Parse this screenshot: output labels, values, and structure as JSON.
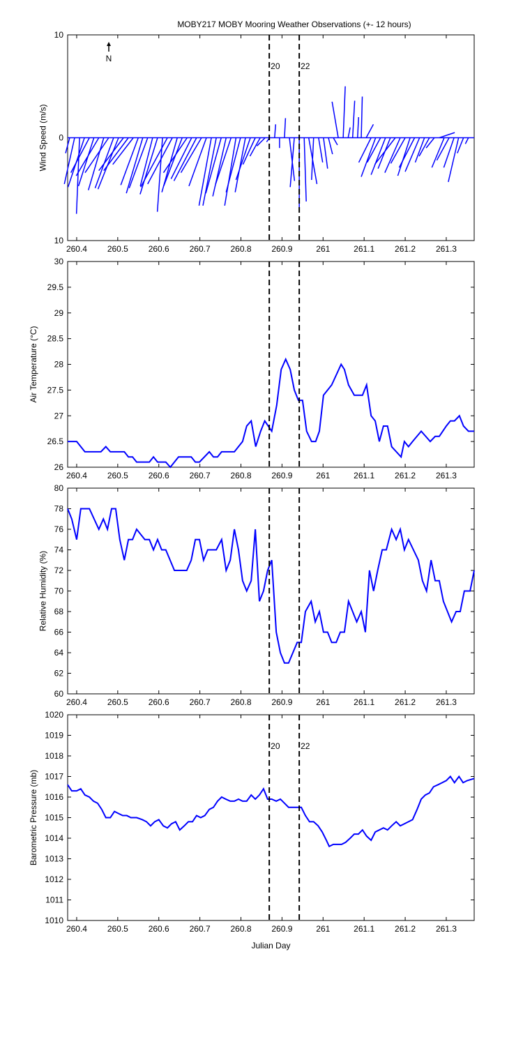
{
  "chart_data": [
    {
      "type": "stick",
      "title": "MOBY217 MOBY Mooring Weather Observations (+- 12 hours)",
      "y_label": "Wind Speed (m/s)",
      "north_label": "N",
      "xlim": [
        260.378,
        261.368
      ],
      "xticks": [
        260.4,
        260.5,
        260.6,
        260.7,
        260.8,
        260.9,
        261,
        261.1,
        261.2,
        261.3
      ],
      "ylim": [
        -10,
        10
      ],
      "yticks": [
        {
          "value": -10,
          "label": "10"
        },
        0,
        10
      ],
      "vlines": [
        260.869,
        260.942
      ],
      "vline_labels": [
        "20",
        "22"
      ],
      "color": "#0000ff",
      "x": [
        260.383,
        260.395,
        260.407,
        260.419,
        260.431,
        260.442,
        260.454,
        260.466,
        260.478,
        260.49,
        260.502,
        260.514,
        260.526,
        260.538,
        260.55,
        260.561,
        260.573,
        260.585,
        260.597,
        260.609,
        260.621,
        260.633,
        260.645,
        260.657,
        260.669,
        260.68,
        260.692,
        260.704,
        260.716,
        260.728,
        260.74,
        260.752,
        260.764,
        260.776,
        260.788,
        260.799,
        260.811,
        260.823,
        260.835,
        260.847,
        260.859,
        260.87,
        260.882,
        260.894,
        260.906,
        260.918,
        260.93,
        260.942,
        260.954,
        260.965,
        260.977,
        260.989,
        261.001,
        261.013,
        261.025,
        261.037,
        261.049,
        261.061,
        261.072,
        261.084,
        261.093,
        261.105,
        261.117,
        261.128,
        261.14,
        261.152,
        261.164,
        261.176,
        261.188,
        261.2,
        261.212,
        261.223,
        261.235,
        261.247,
        261.259,
        261.271,
        261.283,
        261.295,
        261.307,
        261.319,
        261.33,
        261.342,
        261.354
      ],
      "u": [
        -0.4,
        -1.0,
        -0.3,
        -1.6,
        -1.8,
        -1.5,
        -2.2,
        -1.5,
        -2.3,
        -1.8,
        -2.0,
        -2.4,
        -2.4,
        -2.0,
        -1.7,
        -1.6,
        -1.8,
        -1.2,
        -1.7,
        -0.5,
        -2.6,
        -2.4,
        -1.5,
        -1.8,
        -2.3,
        -2.0,
        -2.2,
        -2.0,
        -1.7,
        -1.2,
        -1.3,
        -1.5,
        -1.3,
        -1.5,
        -1.1,
        -1.4,
        -1.0,
        -1.4,
        -1.2,
        -1.0,
        -0.8,
        -0.3,
        0.1,
        0.0,
        0.1,
        0.5,
        -0.4,
        0.0,
        0.2,
        0.8,
        -0.2,
        0.4,
        0.4,
        0.4,
        0.4,
        -0.6,
        0.2,
        0.2,
        0.2,
        0.1,
        0.1,
        0.7,
        -1.2,
        -1.4,
        -1.3,
        -1.4,
        -1.2,
        -2.0,
        -1.5,
        -1.4,
        -1.2,
        -1.5,
        -1.4,
        -0.9,
        -1.0,
        -0.8,
        1.5,
        -1.2,
        -1.2,
        -1.0,
        -1.0,
        -0.6,
        -0.3
      ],
      "v": [
        -1.5,
        -4.5,
        -7.4,
        -4.8,
        -3.4,
        -4.7,
        -3.7,
        -5.1,
        -3.4,
        -4.9,
        -5.0,
        -3.2,
        -3.2,
        -2.6,
        -4.6,
        -5.4,
        -4.9,
        -4.7,
        -5.5,
        -7.2,
        -4.8,
        -4.5,
        -5.3,
        -4.7,
        -3.4,
        -4.0,
        -4.2,
        -3.4,
        -4.7,
        -6.6,
        -6.6,
        -5.4,
        -5.7,
        -4.5,
        -6.6,
        -5.3,
        -5.3,
        -4.1,
        -2.6,
        -1.8,
        -0.8,
        -0.4,
        1.3,
        -1.0,
        1.9,
        -4.2,
        -4.8,
        -6.8,
        -6.2,
        -4.5,
        -4.1,
        -2.4,
        -3.0,
        -1.6,
        -0.7,
        3.5,
        5.0,
        1.0,
        3.6,
        2.0,
        4.0,
        1.3,
        -2.4,
        -3.8,
        -2.4,
        -3.6,
        -3.0,
        -2.6,
        -3.4,
        -2.5,
        -3.7,
        -2.9,
        -3.3,
        -2.4,
        -1.8,
        -1.0,
        0.5,
        -2.9,
        -2.2,
        -2.9,
        -4.3,
        -1.5,
        -0.6
      ]
    },
    {
      "type": "line",
      "y_label": "Air Temperature (°C)",
      "xlim": [
        260.378,
        261.368
      ],
      "xticks": [
        260.4,
        260.5,
        260.6,
        260.7,
        260.8,
        260.9,
        261,
        261.1,
        261.2,
        261.3
      ],
      "ylim": [
        26,
        30
      ],
      "yticks": [
        26,
        26.5,
        27,
        27.5,
        28,
        28.5,
        29,
        29.5,
        30
      ],
      "vlines": [
        260.869,
        260.942
      ],
      "color": "#0000ff",
      "x": [
        260.378,
        260.4,
        260.42,
        260.459,
        260.471,
        260.482,
        260.516,
        260.526,
        260.536,
        260.546,
        260.577,
        260.587,
        260.597,
        260.617,
        260.628,
        260.638,
        260.648,
        260.679,
        260.689,
        260.699,
        260.723,
        260.733,
        260.743,
        260.753,
        260.784,
        260.804,
        260.814,
        260.825,
        260.836,
        260.848,
        260.858,
        260.875,
        260.887,
        260.898,
        260.909,
        260.92,
        260.93,
        260.94,
        260.95,
        260.96,
        260.972,
        260.982,
        260.991,
        261.001,
        261.011,
        261.021,
        261.044,
        261.052,
        261.062,
        261.076,
        261.096,
        261.106,
        261.117,
        261.127,
        261.137,
        261.147,
        261.157,
        261.167,
        261.19,
        261.198,
        261.208,
        261.218,
        261.239,
        261.261,
        261.273,
        261.283,
        261.3,
        261.31,
        261.32,
        261.332,
        261.342,
        261.354,
        261.368
      ],
      "values": [
        26.5,
        26.5,
        26.3,
        26.3,
        26.4,
        26.3,
        26.3,
        26.2,
        26.2,
        26.1,
        26.1,
        26.2,
        26.1,
        26.1,
        26.0,
        26.1,
        26.2,
        26.2,
        26.1,
        26.1,
        26.3,
        26.2,
        26.2,
        26.3,
        26.3,
        26.5,
        26.8,
        26.9,
        26.4,
        26.7,
        26.9,
        26.7,
        27.2,
        27.9,
        28.1,
        27.9,
        27.5,
        27.3,
        27.3,
        26.7,
        26.5,
        26.5,
        26.7,
        27.4,
        27.5,
        27.6,
        28.0,
        27.9,
        27.6,
        27.4,
        27.4,
        27.6,
        27.0,
        26.9,
        26.5,
        26.8,
        26.8,
        26.4,
        26.2,
        26.5,
        26.4,
        26.5,
        26.7,
        26.5,
        26.6,
        26.6,
        26.8,
        26.9,
        26.9,
        27.0,
        26.8,
        26.7,
        26.7
      ]
    },
    {
      "type": "line",
      "y_label": "Relative Humidity (%)",
      "xlim": [
        260.378,
        261.368
      ],
      "xticks": [
        260.4,
        260.5,
        260.6,
        260.7,
        260.8,
        260.9,
        261,
        261.1,
        261.2,
        261.3
      ],
      "ylim": [
        60,
        80
      ],
      "yticks": [
        60,
        62,
        64,
        66,
        68,
        70,
        72,
        74,
        76,
        78,
        80
      ],
      "vlines": [
        260.869,
        260.942
      ],
      "color": "#0000ff",
      "x": [
        260.378,
        260.388,
        260.4,
        260.41,
        260.431,
        260.454,
        260.465,
        260.475,
        260.485,
        260.495,
        260.505,
        260.516,
        260.526,
        260.536,
        260.546,
        260.566,
        260.577,
        260.587,
        260.597,
        260.607,
        260.617,
        260.638,
        260.668,
        260.679,
        260.689,
        260.699,
        260.709,
        260.719,
        260.74,
        260.753,
        260.764,
        260.774,
        260.784,
        260.794,
        260.804,
        260.814,
        260.825,
        260.835,
        260.845,
        260.855,
        260.865,
        260.875,
        260.886,
        260.896,
        260.906,
        260.916,
        260.937,
        260.947,
        260.957,
        260.971,
        260.981,
        260.991,
        261.001,
        261.011,
        261.021,
        261.032,
        261.042,
        261.052,
        261.062,
        261.072,
        261.082,
        261.093,
        261.103,
        261.113,
        261.123,
        261.133,
        261.144,
        261.154,
        261.167,
        261.178,
        261.188,
        261.198,
        261.208,
        261.232,
        261.242,
        261.252,
        261.263,
        261.273,
        261.283,
        261.293,
        261.303,
        261.313,
        261.324,
        261.334,
        261.344,
        261.358,
        261.368
      ],
      "values": [
        78,
        77,
        75,
        78,
        78,
        76,
        77,
        76,
        78,
        78,
        75,
        73,
        75,
        75,
        76,
        75,
        75,
        74,
        75,
        74,
        74,
        72,
        72,
        73,
        75,
        75,
        73,
        74,
        74,
        75,
        72,
        73,
        76,
        74,
        71,
        70,
        71,
        76,
        69,
        70,
        72,
        73,
        66,
        64,
        63,
        63,
        65,
        65,
        68,
        69,
        67,
        68,
        66,
        66,
        65,
        65,
        66,
        66,
        69,
        68,
        67,
        68,
        66,
        72,
        70,
        72,
        74,
        74,
        76,
        75,
        76,
        74,
        75,
        73,
        71,
        70,
        73,
        71,
        71,
        69,
        68,
        67,
        68,
        68,
        70,
        70,
        72
      ]
    },
    {
      "type": "line",
      "y_label": "Barometric Pressure (mb)",
      "x_label": "Julian Day",
      "xlim": [
        260.378,
        261.368
      ],
      "xticks": [
        260.4,
        260.5,
        260.6,
        260.7,
        260.8,
        260.9,
        261,
        261.1,
        261.2,
        261.3
      ],
      "ylim": [
        1010,
        1020
      ],
      "yticks": [
        1010,
        1011,
        1012,
        1013,
        1014,
        1015,
        1016,
        1017,
        1018,
        1019,
        1020
      ],
      "vlines": [
        260.869,
        260.942
      ],
      "vline_labels": [
        "20",
        "22"
      ],
      "color": "#0000ff",
      "x": [
        260.378,
        260.388,
        260.4,
        260.41,
        260.42,
        260.431,
        260.441,
        260.451,
        260.461,
        260.471,
        260.482,
        260.492,
        260.502,
        260.512,
        260.522,
        260.532,
        260.546,
        260.56,
        260.57,
        260.58,
        260.59,
        260.6,
        260.611,
        260.621,
        260.631,
        260.641,
        260.651,
        260.662,
        260.672,
        260.682,
        260.692,
        260.702,
        260.712,
        260.723,
        260.733,
        260.743,
        260.753,
        260.763,
        260.774,
        260.784,
        260.794,
        260.804,
        260.814,
        260.825,
        260.835,
        260.845,
        260.855,
        260.865,
        260.875,
        260.886,
        260.896,
        260.906,
        260.916,
        260.937,
        260.947,
        260.957,
        260.967,
        260.977,
        260.988,
        260.998,
        261.008,
        261.015,
        261.025,
        261.045,
        261.055,
        261.066,
        261.076,
        261.086,
        261.096,
        261.106,
        261.117,
        261.127,
        261.137,
        261.147,
        261.157,
        261.167,
        261.178,
        261.188,
        261.198,
        261.218,
        261.229,
        261.239,
        261.249,
        261.259,
        261.269,
        261.28,
        261.29,
        261.3,
        261.31,
        261.32,
        261.331,
        261.341,
        261.351,
        261.368
      ],
      "values": [
        1016.6,
        1016.3,
        1016.3,
        1016.4,
        1016.1,
        1016.0,
        1015.8,
        1015.7,
        1015.4,
        1015.0,
        1015.0,
        1015.3,
        1015.2,
        1015.1,
        1015.1,
        1015.0,
        1015.0,
        1014.9,
        1014.8,
        1014.6,
        1014.8,
        1014.9,
        1014.6,
        1014.5,
        1014.7,
        1014.8,
        1014.4,
        1014.6,
        1014.8,
        1014.8,
        1015.1,
        1015.0,
        1015.1,
        1015.4,
        1015.5,
        1015.8,
        1016.0,
        1015.9,
        1015.8,
        1015.8,
        1015.9,
        1015.8,
        1015.8,
        1016.1,
        1015.9,
        1016.1,
        1016.4,
        1015.9,
        1015.9,
        1015.8,
        1015.9,
        1015.7,
        1015.5,
        1015.5,
        1015.5,
        1015.1,
        1014.8,
        1014.8,
        1014.6,
        1014.3,
        1013.9,
        1013.6,
        1013.7,
        1013.7,
        1013.8,
        1014.0,
        1014.2,
        1014.2,
        1014.4,
        1014.1,
        1013.9,
        1014.3,
        1014.4,
        1014.5,
        1014.4,
        1014.6,
        1014.8,
        1014.6,
        1014.7,
        1014.9,
        1015.4,
        1015.9,
        1016.1,
        1016.2,
        1016.5,
        1016.6,
        1016.7,
        1016.8,
        1017.0,
        1016.7,
        1017.0,
        1016.7,
        1016.8,
        1016.9
      ]
    }
  ]
}
